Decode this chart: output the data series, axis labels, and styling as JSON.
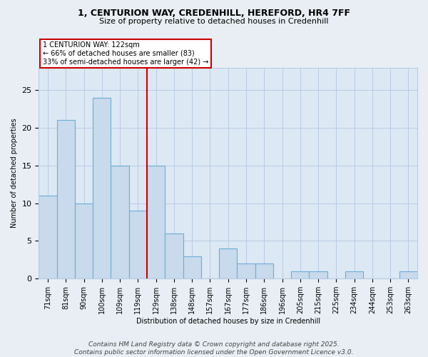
{
  "title": "1, CENTURION WAY, CREDENHILL, HEREFORD, HR4 7FF",
  "subtitle": "Size of property relative to detached houses in Credenhill",
  "xlabel": "Distribution of detached houses by size in Credenhill",
  "ylabel": "Number of detached properties",
  "categories": [
    "71sqm",
    "81sqm",
    "90sqm",
    "100sqm",
    "109sqm",
    "119sqm",
    "129sqm",
    "138sqm",
    "148sqm",
    "157sqm",
    "167sqm",
    "177sqm",
    "186sqm",
    "196sqm",
    "205sqm",
    "215sqm",
    "225sqm",
    "234sqm",
    "244sqm",
    "253sqm",
    "263sqm"
  ],
  "values": [
    11,
    21,
    10,
    24,
    15,
    9,
    15,
    6,
    3,
    0,
    4,
    2,
    2,
    0,
    1,
    1,
    0,
    1,
    0,
    0,
    1
  ],
  "bar_color": "#c8daec",
  "bar_edge_color": "#6baed6",
  "vline_x_index": 5.5,
  "vline_color": "#cc0000",
  "annotation_text": "1 CENTURION WAY: 122sqm\n← 66% of detached houses are smaller (83)\n33% of semi-detached houses are larger (42) →",
  "annotation_box_color": "#ffffff",
  "annotation_box_edge": "#cc0000",
  "ylim": [
    0,
    28
  ],
  "yticks": [
    0,
    5,
    10,
    15,
    20,
    25
  ],
  "footer": "Contains HM Land Registry data © Crown copyright and database right 2025.\nContains public sector information licensed under the Open Government Licence v3.0.",
  "bg_color": "#e8eef4",
  "plot_bg_color": "#dce8f4",
  "grid_color": "#b8cce4",
  "title_fontsize": 9,
  "subtitle_fontsize": 8,
  "axis_fontsize": 7,
  "ylabel_fontsize": 7,
  "xlabel_fontsize": 7
}
